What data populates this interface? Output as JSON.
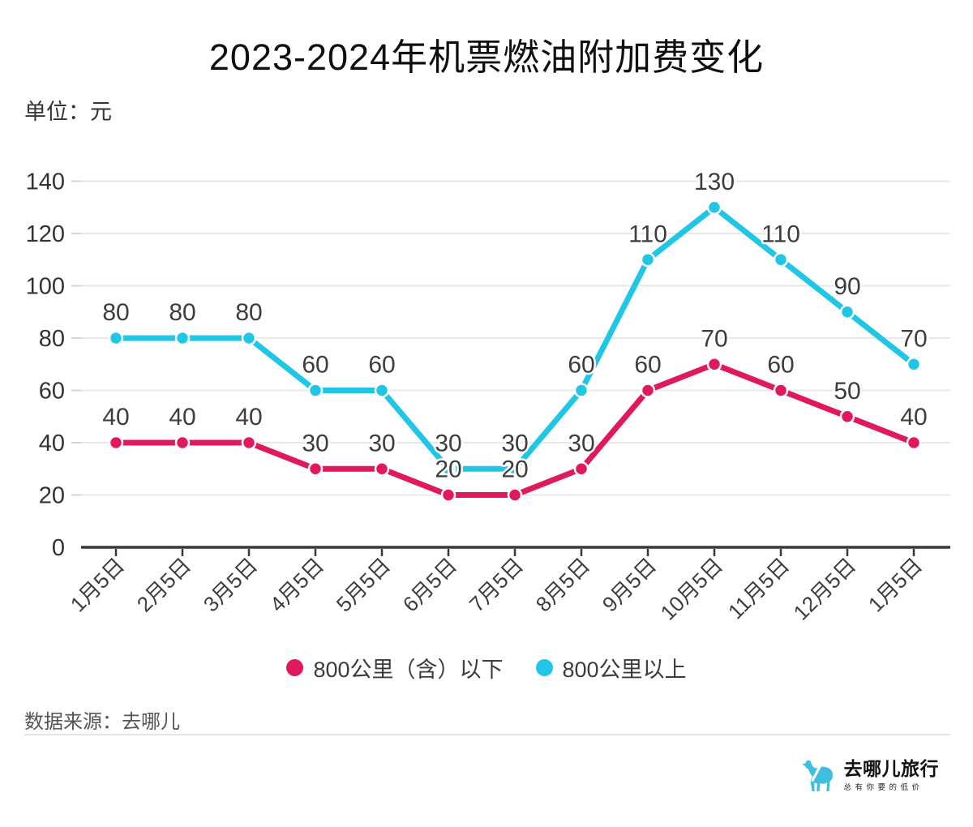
{
  "title": "2023-2024年机票燃油附加费变化",
  "unit_label": "单位：元",
  "source_label": "数据来源：去哪儿",
  "logo": {
    "brand": "去哪儿旅行",
    "tagline": "总有你要的低价"
  },
  "colors": {
    "below_800": "#E0195A",
    "above_800": "#1FC6E6",
    "grid": "#e8e8e8",
    "y_tick": "#d4d4d4",
    "axis": "#383838",
    "value_label": "#3d3d3d",
    "axis_label": "#3d3d3d",
    "y_label": "#333333",
    "logo_camel": "#3FBFDD"
  },
  "chart_data": {
    "type": "line",
    "title": "2023-2024年机票燃油附加费变化",
    "unit": "元",
    "categories": [
      "1月5日",
      "2月5日",
      "3月5日",
      "4月5日",
      "5月5日",
      "6月5日",
      "7月5日",
      "8月5日",
      "9月5日",
      "10月5日",
      "11月5日",
      "12月5日",
      "1月5日"
    ],
    "series": [
      {
        "name": "800公里（含）以下",
        "color_key": "below_800",
        "values": [
          40,
          40,
          40,
          30,
          30,
          20,
          20,
          30,
          60,
          70,
          60,
          50,
          40
        ]
      },
      {
        "name": "800公里以上",
        "color_key": "above_800",
        "values": [
          80,
          80,
          80,
          60,
          60,
          30,
          30,
          60,
          110,
          130,
          110,
          90,
          70
        ]
      }
    ],
    "ylim": [
      0,
      140
    ],
    "ytick_interval": 20,
    "grid": "horizontal-only",
    "legend_position": "bottom",
    "value_labels": true,
    "x_label_rotation": -45
  }
}
